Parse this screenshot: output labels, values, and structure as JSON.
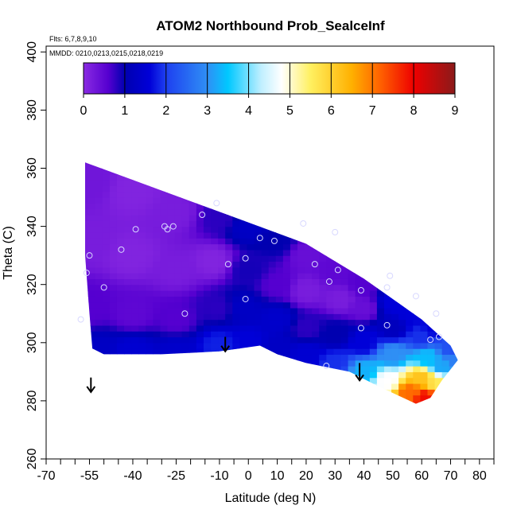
{
  "chart_data": {
    "type": "heatmap",
    "title": "ATOM2 Northbound Prob_SealceInf",
    "annotations": {
      "flights": "Flts: 6,7,8,9,10",
      "dates": "MMDD: 0210,0213,0215,0218,0219"
    },
    "xlabel": "Latitude (deg N)",
    "ylabel": "Theta (C)",
    "xlim": [
      -70,
      85
    ],
    "ylim": [
      260,
      402
    ],
    "x_ticks": [
      -70,
      -55,
      -40,
      -25,
      -10,
      0,
      10,
      20,
      30,
      40,
      50,
      60,
      70,
      80
    ],
    "x_minor_ticks": [
      -65,
      -60,
      -50,
      -45,
      -35,
      -30,
      -20,
      -15,
      -5,
      5,
      15,
      25,
      35,
      45,
      55,
      65,
      75,
      85
    ],
    "y_ticks": [
      260,
      280,
      300,
      320,
      340,
      360,
      380,
      400
    ],
    "colorbar": {
      "placement": "top-inside",
      "range": [
        0,
        9
      ],
      "ticks": [
        0,
        1,
        2,
        3,
        4,
        5,
        6,
        7,
        8,
        9
      ],
      "stops": [
        {
          "v": 0,
          "color": "#8a2be2"
        },
        {
          "v": 0.6,
          "color": "#5500d0"
        },
        {
          "v": 1,
          "color": "#0000b0"
        },
        {
          "v": 1.6,
          "color": "#0000d8"
        },
        {
          "v": 2,
          "color": "#1e40f0"
        },
        {
          "v": 3,
          "color": "#2f8ff5"
        },
        {
          "v": 3.5,
          "color": "#00c8ff"
        },
        {
          "v": 4.3,
          "color": "#bfefff"
        },
        {
          "v": 4.8,
          "color": "#ffffff"
        },
        {
          "v": 5.5,
          "color": "#fff060"
        },
        {
          "v": 6.5,
          "color": "#ffb000"
        },
        {
          "v": 7.2,
          "color": "#ff6000"
        },
        {
          "v": 8,
          "color": "#ee0000"
        },
        {
          "v": 9,
          "color": "#8b1a1a"
        }
      ]
    },
    "field": {
      "boundary": [
        [
          -56.5,
          362
        ],
        [
          -10,
          345
        ],
        [
          20,
          334
        ],
        [
          40,
          322
        ],
        [
          50,
          315
        ],
        [
          60,
          308
        ],
        [
          70,
          299
        ],
        [
          72.5,
          294
        ],
        [
          67,
          287
        ],
        [
          63,
          281
        ],
        [
          58,
          279
        ],
        [
          45,
          285
        ],
        [
          35,
          290
        ],
        [
          20,
          293
        ],
        [
          10,
          296
        ],
        [
          4,
          299
        ],
        [
          -10,
          297
        ],
        [
          -30,
          296
        ],
        [
          -50,
          296
        ],
        [
          -54,
          298
        ],
        [
          -55,
          310
        ],
        [
          -56.5,
          330
        ]
      ],
      "samples": [
        [
          -55,
          355,
          0.3
        ],
        [
          -55,
          335,
          0.2
        ],
        [
          -55,
          312,
          0.6
        ],
        [
          -52,
          297,
          1.3
        ],
        [
          -40,
          352,
          0.1
        ],
        [
          -40,
          330,
          0.1
        ],
        [
          -40,
          310,
          0.5
        ],
        [
          -40,
          297,
          1.5
        ],
        [
          -25,
          345,
          0.2
        ],
        [
          -25,
          325,
          0.2
        ],
        [
          -25,
          308,
          0.6
        ],
        [
          -25,
          297,
          1.4
        ],
        [
          -10,
          343,
          0.8
        ],
        [
          -12,
          328,
          0.1
        ],
        [
          -10,
          312,
          0.8
        ],
        [
          -10,
          299,
          1.8
        ],
        [
          0,
          340,
          1.3
        ],
        [
          0,
          325,
          0.9
        ],
        [
          -2,
          312,
          1.3
        ],
        [
          0,
          300,
          1.6
        ],
        [
          10,
          335,
          1.0
        ],
        [
          10,
          320,
          0.6
        ],
        [
          10,
          308,
          1.4
        ],
        [
          10,
          298,
          1.3
        ],
        [
          20,
          330,
          0.4
        ],
        [
          20,
          318,
          0.2
        ],
        [
          20,
          305,
          0.8
        ],
        [
          20,
          296,
          1.5
        ],
        [
          30,
          325,
          0.5
        ],
        [
          32,
          315,
          0.2
        ],
        [
          30,
          303,
          1.0
        ],
        [
          30,
          293,
          1.9
        ],
        [
          40,
          320,
          0.6
        ],
        [
          40,
          312,
          0.4
        ],
        [
          40,
          300,
          1.6
        ],
        [
          40,
          290,
          3.3
        ],
        [
          50,
          314,
          1.6
        ],
        [
          50,
          305,
          1.2
        ],
        [
          50,
          296,
          3.0
        ],
        [
          48,
          287,
          4.8
        ],
        [
          57,
          310,
          1.6
        ],
        [
          60,
          302,
          1.9
        ],
        [
          62,
          295,
          3.4
        ],
        [
          60,
          288,
          6.2
        ],
        [
          56,
          283,
          7.1
        ],
        [
          61,
          281,
          7.9
        ],
        [
          66,
          286,
          5.6
        ],
        [
          67,
          292,
          3.2
        ],
        [
          70,
          298,
          2.2
        ],
        [
          71,
          294,
          2.8
        ],
        [
          64,
          305,
          1.6
        ]
      ]
    },
    "observation_points": [
      {
        "x": -55,
        "y": 330
      },
      {
        "x": -56,
        "y": 324
      },
      {
        "x": -50,
        "y": 319
      },
      {
        "x": -44,
        "y": 332
      },
      {
        "x": -39,
        "y": 339
      },
      {
        "x": -29,
        "y": 340
      },
      {
        "x": -28,
        "y": 339
      },
      {
        "x": -26,
        "y": 340
      },
      {
        "x": -16,
        "y": 344
      },
      {
        "x": -11,
        "y": 348
      },
      {
        "x": -22,
        "y": 310
      },
      {
        "x": -7,
        "y": 327
      },
      {
        "x": -1,
        "y": 329
      },
      {
        "x": -1,
        "y": 315
      },
      {
        "x": 4,
        "y": 336
      },
      {
        "x": 9,
        "y": 335
      },
      {
        "x": 19,
        "y": 341
      },
      {
        "x": 23,
        "y": 327
      },
      {
        "x": 30,
        "y": 338
      },
      {
        "x": 31,
        "y": 325
      },
      {
        "x": 28,
        "y": 321
      },
      {
        "x": 39,
        "y": 318
      },
      {
        "x": 39,
        "y": 305
      },
      {
        "x": 48,
        "y": 306
      },
      {
        "x": 48,
        "y": 319
      },
      {
        "x": 49,
        "y": 323
      },
      {
        "x": 58,
        "y": 316
      },
      {
        "x": 65,
        "y": 310
      },
      {
        "x": 63,
        "y": 301
      },
      {
        "x": 66,
        "y": 302
      },
      {
        "x": 27,
        "y": 292
      },
      {
        "x": -58,
        "y": 308
      }
    ],
    "arrows": [
      {
        "x": -54.5,
        "y_top": 288,
        "y_bottom": 283
      },
      {
        "x": -8,
        "y_top": 302,
        "y_bottom": 297
      },
      {
        "x": 38.5,
        "y_top": 293,
        "y_bottom": 287
      }
    ]
  }
}
